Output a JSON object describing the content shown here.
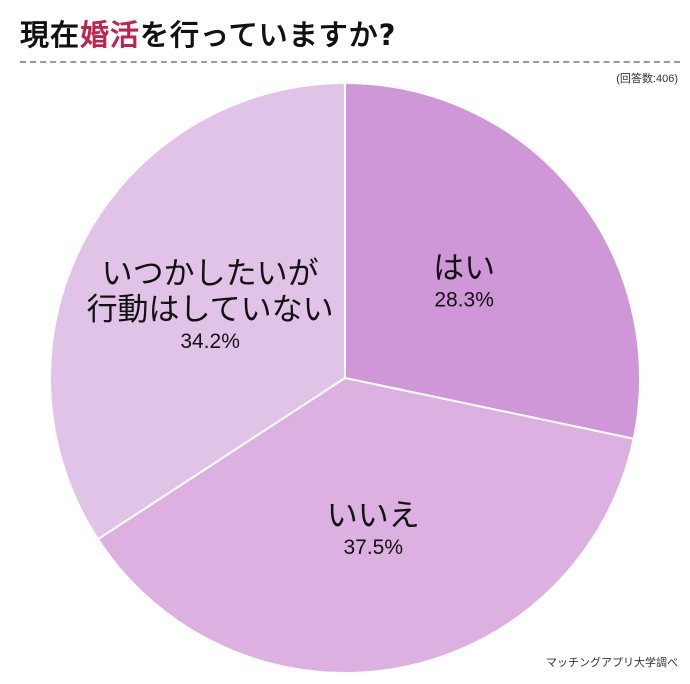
{
  "title": {
    "before": "現在",
    "accent": "婚活",
    "after": "を行っていますか?"
  },
  "note": "(回答数:406)",
  "credit": "マッチングアプリ大学調べ",
  "colors": {
    "accent": "#c0234e",
    "divider": "#9a9a9a"
  },
  "chart_data": {
    "type": "pie",
    "slices": [
      {
        "label": [
          "はい"
        ],
        "percent_label": "28.3%",
        "value": 28.3,
        "color": "#cf97d7"
      },
      {
        "label": [
          "いいえ"
        ],
        "percent_label": "37.5%",
        "value": 37.5,
        "color": "#dcb0e0"
      },
      {
        "label": [
          "いつかしたいが",
          "行動はしていない"
        ],
        "percent_label": "34.2%",
        "value": 34.2,
        "color": "#e2c3e8"
      }
    ],
    "start_angle_deg": 0,
    "direction": "clockwise"
  }
}
